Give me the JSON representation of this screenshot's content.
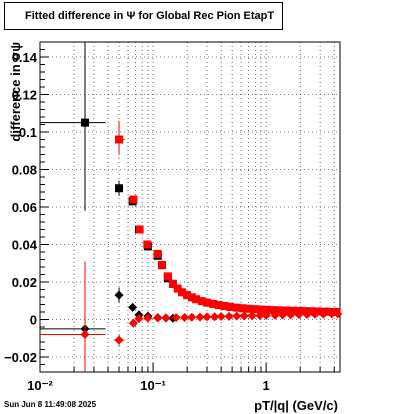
{
  "footer": {
    "timestamp": "Sun Jun  8 11:49:08 2025"
  },
  "chart_data": {
    "type": "scatter",
    "title": "Fitted difference in  Ψ  for Global Rec Pion EtapT",
    "xlabel": "pT/|q| (GeV/c)",
    "ylabel": "difference in σψ",
    "x_scale": "log",
    "xlim": [
      0.01,
      4.5
    ],
    "ylim": [
      -0.028,
      0.148
    ],
    "x_ticks": [
      {
        "value": 0.01,
        "label": "10⁻²"
      },
      {
        "value": 0.1,
        "label": "10⁻¹"
      },
      {
        "value": 1,
        "label": "1"
      }
    ],
    "y_ticks": [
      -0.02,
      0,
      0.02,
      0.04,
      0.06,
      0.08,
      0.1,
      0.12,
      0.14
    ],
    "y_tick_labels": [
      "−0.02",
      "0",
      "0.02",
      "0.04",
      "0.06",
      "0.08",
      "0.1",
      "0.12",
      "0.14"
    ],
    "grid": true,
    "series": [
      {
        "color": "#000000",
        "marker": "square",
        "points": [
          {
            "x": 0.025,
            "y": 0.105,
            "xlo": 0.01,
            "xhi": 0.038,
            "ylo": 0.058,
            "yhi": 0.148
          },
          {
            "x": 0.05,
            "y": 0.07,
            "ylo": 0.066,
            "yhi": 0.074
          },
          {
            "x": 0.066,
            "y": 0.063
          },
          {
            "x": 0.075,
            "y": 0.048
          },
          {
            "x": 0.09,
            "y": 0.039
          },
          {
            "x": 0.11,
            "y": 0.034
          },
          {
            "x": 0.12,
            "y": 0.029
          },
          {
            "x": 0.135,
            "y": 0.022
          },
          {
            "x": 0.15,
            "y": 0.019
          }
        ]
      },
      {
        "color": "#ff0000",
        "marker": "square",
        "points": [
          {
            "x": 0.05,
            "y": 0.096,
            "xlo": 0.046,
            "xhi": 0.056,
            "ylo": 0.088,
            "yhi": 0.106
          },
          {
            "x": 0.067,
            "y": 0.064
          },
          {
            "x": 0.076,
            "y": 0.048
          },
          {
            "x": 0.089,
            "y": 0.04
          },
          {
            "x": 0.11,
            "y": 0.035
          },
          {
            "x": 0.12,
            "y": 0.029
          },
          {
            "x": 0.135,
            "y": 0.023
          },
          {
            "x": 0.15,
            "y": 0.019
          },
          {
            "x": 0.165,
            "y": 0.0165
          },
          {
            "x": 0.18,
            "y": 0.0145
          },
          {
            "x": 0.2,
            "y": 0.013
          },
          {
            "x": 0.22,
            "y": 0.0118
          },
          {
            "x": 0.24,
            "y": 0.0108
          },
          {
            "x": 0.27,
            "y": 0.0098
          },
          {
            "x": 0.3,
            "y": 0.009
          },
          {
            "x": 0.34,
            "y": 0.0083
          },
          {
            "x": 0.38,
            "y": 0.0077
          },
          {
            "x": 0.43,
            "y": 0.0072
          },
          {
            "x": 0.48,
            "y": 0.0067
          },
          {
            "x": 0.55,
            "y": 0.0063
          },
          {
            "x": 0.62,
            "y": 0.006
          },
          {
            "x": 0.7,
            "y": 0.0057
          },
          {
            "x": 0.8,
            "y": 0.0055
          },
          {
            "x": 0.9,
            "y": 0.0053
          },
          {
            "x": 1.0,
            "y": 0.0052
          },
          {
            "x": 1.15,
            "y": 0.005
          },
          {
            "x": 1.3,
            "y": 0.0049
          },
          {
            "x": 1.5,
            "y": 0.0048
          },
          {
            "x": 1.7,
            "y": 0.0047
          },
          {
            "x": 1.95,
            "y": 0.0046
          },
          {
            "x": 2.2,
            "y": 0.0045
          },
          {
            "x": 2.5,
            "y": 0.0044
          },
          {
            "x": 2.85,
            "y": 0.0043
          },
          {
            "x": 3.25,
            "y": 0.0042
          },
          {
            "x": 3.7,
            "y": 0.0041
          },
          {
            "x": 4.2,
            "y": 0.004
          }
        ]
      },
      {
        "color": "#000000",
        "marker": "diamond",
        "points": [
          {
            "x": 0.025,
            "y": -0.005,
            "xlo": 0.01,
            "xhi": 0.038,
            "ylo": -0.009,
            "yhi": -0.001
          },
          {
            "x": 0.05,
            "y": 0.013,
            "ylo": 0.009,
            "yhi": 0.017
          },
          {
            "x": 0.066,
            "y": 0.0065
          },
          {
            "x": 0.075,
            "y": 0.0025
          },
          {
            "x": 0.09,
            "y": 0.0018
          },
          {
            "x": 0.11,
            "y": 0.001
          },
          {
            "x": 0.13,
            "y": 0.0008
          },
          {
            "x": 0.15,
            "y": 0.0007
          }
        ]
      },
      {
        "color": "#ff0000",
        "marker": "diamond",
        "points": [
          {
            "x": 0.025,
            "y": -0.008,
            "xlo": 0.01,
            "xhi": 0.038,
            "ylo": -0.028,
            "yhi": 0.031
          },
          {
            "x": 0.05,
            "y": -0.011,
            "xlo": 0.045,
            "xhi": 0.056,
            "ylo": -0.014,
            "yhi": -0.008
          },
          {
            "x": 0.067,
            "y": -0.002
          },
          {
            "x": 0.075,
            "y": 0.0005
          },
          {
            "x": 0.09,
            "y": 0.0008
          },
          {
            "x": 0.11,
            "y": 0.0008
          },
          {
            "x": 0.13,
            "y": 0.0009
          },
          {
            "x": 0.16,
            "y": 0.001
          },
          {
            "x": 0.19,
            "y": 0.0011
          },
          {
            "x": 0.22,
            "y": 0.0012
          },
          {
            "x": 0.26,
            "y": 0.0013
          },
          {
            "x": 0.3,
            "y": 0.0014
          },
          {
            "x": 0.35,
            "y": 0.0015
          },
          {
            "x": 0.4,
            "y": 0.0016
          },
          {
            "x": 0.47,
            "y": 0.0017
          },
          {
            "x": 0.55,
            "y": 0.0018
          },
          {
            "x": 0.64,
            "y": 0.0019
          },
          {
            "x": 0.75,
            "y": 0.002
          },
          {
            "x": 0.88,
            "y": 0.0021
          },
          {
            "x": 1.0,
            "y": 0.0022
          },
          {
            "x": 1.2,
            "y": 0.0023
          },
          {
            "x": 1.4,
            "y": 0.0024
          },
          {
            "x": 1.65,
            "y": 0.0025
          },
          {
            "x": 1.95,
            "y": 0.0026
          },
          {
            "x": 2.3,
            "y": 0.0027
          },
          {
            "x": 2.7,
            "y": 0.0028
          },
          {
            "x": 3.2,
            "y": 0.0029
          },
          {
            "x": 3.8,
            "y": 0.003
          },
          {
            "x": 4.3,
            "y": 0.003
          }
        ]
      }
    ]
  }
}
